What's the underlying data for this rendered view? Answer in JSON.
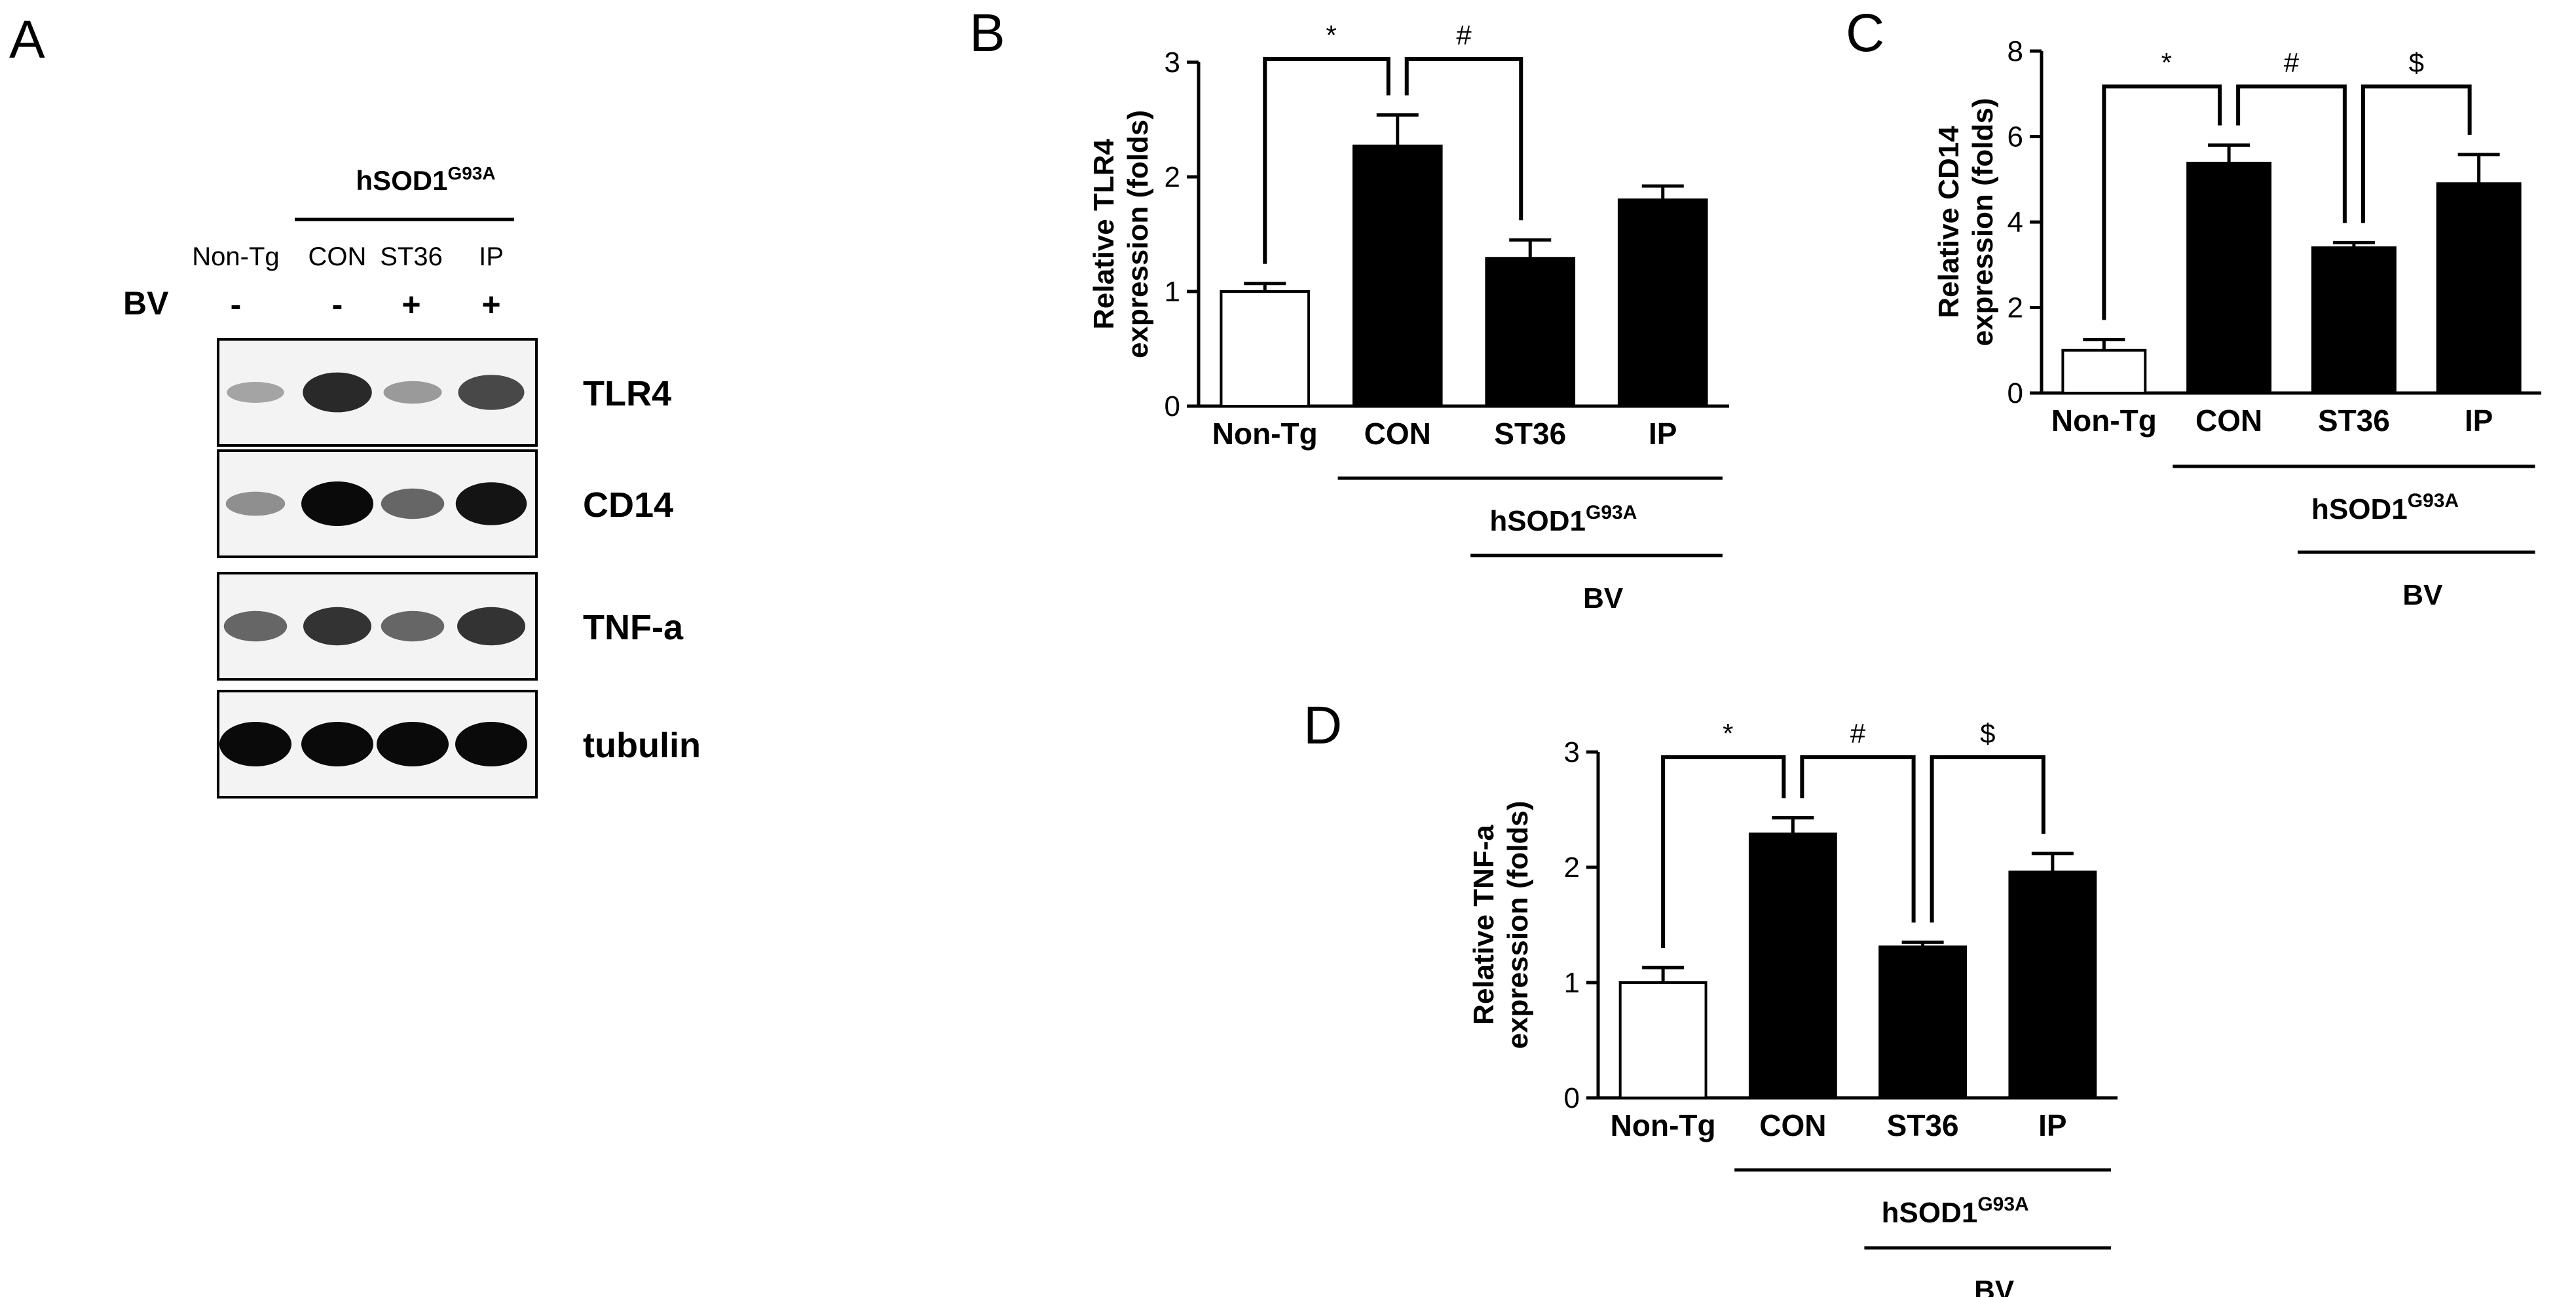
{
  "blot": {
    "panel_letter": "A",
    "group_label": "hSOD1",
    "group_label_sup": "G93A",
    "lanes": [
      "Non-Tg",
      "CON",
      "ST36",
      "IP"
    ],
    "bv_label": "BV",
    "bv_signs": [
      "-",
      "-",
      "+",
      "+"
    ],
    "rows": [
      {
        "name": "TLR4",
        "intensity": [
          0.25,
          0.85,
          0.3,
          0.7
        ]
      },
      {
        "name": "CD14",
        "intensity": [
          0.35,
          1.0,
          0.55,
          0.95
        ]
      },
      {
        "name": "TNF-a",
        "intensity": [
          0.55,
          0.8,
          0.55,
          0.8
        ]
      },
      {
        "name": "tubulin",
        "intensity": [
          1.0,
          1.0,
          1.0,
          1.0
        ]
      }
    ]
  },
  "chart_data": [
    {
      "id": "B",
      "type": "bar",
      "panel_letter": "B",
      "ylabel_line1": "Relative TLR4",
      "ylabel_line2": "expression (folds)",
      "ylim": [
        0,
        3
      ],
      "yticks": [
        "0",
        "1",
        "2",
        "3"
      ],
      "categories": [
        "Non-Tg",
        "CON",
        "ST36",
        "IP"
      ],
      "values": [
        1.0,
        2.27,
        1.29,
        1.8
      ],
      "errors": [
        0.07,
        0.27,
        0.16,
        0.12
      ],
      "fills": [
        "#ffffff",
        "#000000",
        "#000000",
        "#000000"
      ],
      "group_label": "hSOD1",
      "group_label_sup": "G93A",
      "bv_label": "BV",
      "sig": [
        {
          "from": 0,
          "to": 1,
          "symbol": "*"
        },
        {
          "from": 1,
          "to": 2,
          "symbol": "#"
        }
      ]
    },
    {
      "id": "C",
      "type": "bar",
      "panel_letter": "C",
      "ylabel_line1": "Relative CD14",
      "ylabel_line2": "expression (folds)",
      "ylim": [
        0,
        8
      ],
      "yticks": [
        "0",
        "2",
        "4",
        "6",
        "8"
      ],
      "categories": [
        "Non-Tg",
        "CON",
        "ST36",
        "IP"
      ],
      "values": [
        1.0,
        5.38,
        3.4,
        4.9
      ],
      "errors": [
        0.25,
        0.42,
        0.12,
        0.68
      ],
      "fills": [
        "#ffffff",
        "#000000",
        "#000000",
        "#000000"
      ],
      "group_label": "hSOD1",
      "group_label_sup": "G93A",
      "bv_label": "BV",
      "sig": [
        {
          "from": 0,
          "to": 1,
          "symbol": "*"
        },
        {
          "from": 1,
          "to": 2,
          "symbol": "#"
        },
        {
          "from": 2,
          "to": 3,
          "symbol": "$"
        }
      ]
    },
    {
      "id": "D",
      "type": "bar",
      "panel_letter": "D",
      "ylabel_line1": "Relative TNF-a",
      "ylabel_line2": "expression (folds)",
      "ylim": [
        0,
        3
      ],
      "yticks": [
        "0",
        "1",
        "2",
        "3"
      ],
      "categories": [
        "Non-Tg",
        "CON",
        "ST36",
        "IP"
      ],
      "values": [
        1.0,
        2.29,
        1.31,
        1.96
      ],
      "errors": [
        0.13,
        0.14,
        0.04,
        0.16
      ],
      "fills": [
        "#ffffff",
        "#000000",
        "#000000",
        "#000000"
      ],
      "group_label": "hSOD1",
      "group_label_sup": "G93A",
      "bv_label": "BV",
      "sig": [
        {
          "from": 0,
          "to": 1,
          "symbol": "*"
        },
        {
          "from": 1,
          "to": 2,
          "symbol": "#"
        },
        {
          "from": 2,
          "to": 3,
          "symbol": "$"
        }
      ]
    }
  ]
}
